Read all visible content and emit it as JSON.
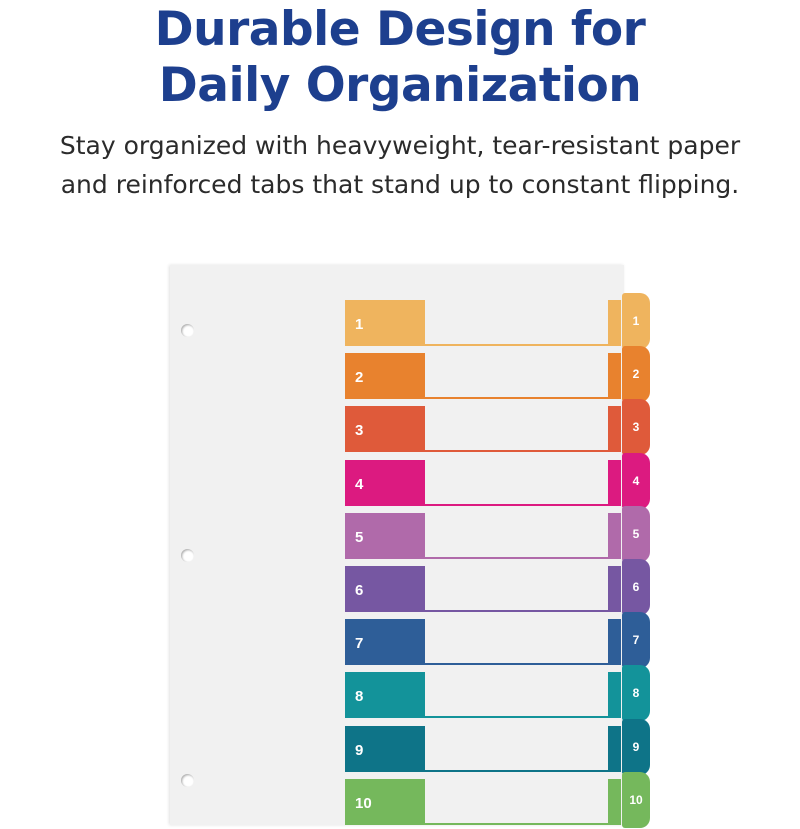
{
  "headline": {
    "line1": "Durable Design for",
    "line2": "Daily Organization"
  },
  "subtitle": {
    "line1": "Stay organized with heavyweight, tear-resistant paper",
    "line2": "and reinforced tabs that stand up to constant flipping."
  },
  "tabs": [
    {
      "label": "1",
      "color": "#efb45e"
    },
    {
      "label": "2",
      "color": "#e8822e"
    },
    {
      "label": "3",
      "color": "#df5a3a"
    },
    {
      "label": "4",
      "color": "#dc1a80"
    },
    {
      "label": "5",
      "color": "#b06aaa"
    },
    {
      "label": "6",
      "color": "#7657a2"
    },
    {
      "label": "7",
      "color": "#2e5e98"
    },
    {
      "label": "8",
      "color": "#13939a"
    },
    {
      "label": "9",
      "color": "#0e7488"
    },
    {
      "label": "10",
      "color": "#75b85c"
    }
  ]
}
